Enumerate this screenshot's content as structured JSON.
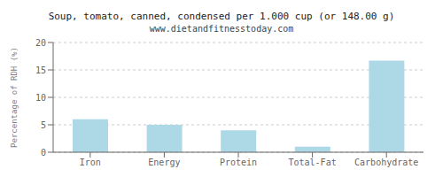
{
  "chart_data": {
    "type": "bar",
    "title": "Soup, tomato, canned, condensed per 1.000 cup (or 148.00 g)",
    "subtitle": "www.dietandfitnesstoday.com",
    "categories": [
      "Iron",
      "Energy",
      "Protein",
      "Total-Fat",
      "Carbohydrate"
    ],
    "values": [
      6.0,
      5.0,
      4.0,
      1.0,
      16.7
    ],
    "color": "#add8e6",
    "ylabel": "Percentage of RDH (%)",
    "ylim": [
      0,
      20
    ],
    "yticks": [
      0,
      5,
      10,
      15,
      20
    ],
    "grid": true
  }
}
